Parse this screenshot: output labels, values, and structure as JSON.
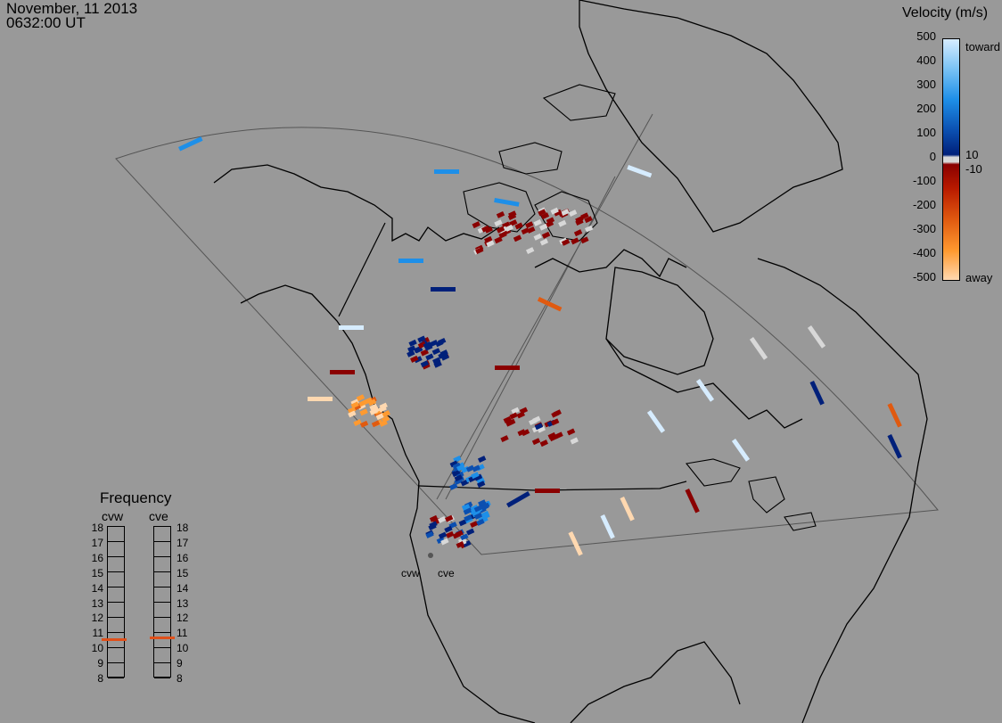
{
  "timestamp": {
    "date": "November, 11 2013",
    "time": "0632:00 UT"
  },
  "legend": {
    "title": "Velocity (m/s)",
    "ticks": [
      "500",
      "400",
      "300",
      "200",
      "100",
      "0",
      "-100",
      "-200",
      "-300",
      "-400",
      "-500"
    ],
    "inner_labels": {
      "pos": "10",
      "neg": "-10"
    },
    "toward_label": "toward",
    "away_label": "away",
    "colors": {
      "toward_max": "#d6ecff",
      "toward_mid": "#1e8fe8",
      "toward_low": "#00207a",
      "zero_band": "#d8d8d8",
      "away_low": "#8a0000",
      "away_mid": "#e05a10",
      "away_max": "#ffd8b0"
    }
  },
  "frequency_panel": {
    "title": "Frequency",
    "radars": [
      {
        "name": "cvw",
        "selected_mhz": 10.5
      },
      {
        "name": "cve",
        "selected_mhz": 10.6
      }
    ],
    "scale_labels": [
      "18",
      "17",
      "16",
      "15",
      "14",
      "13",
      "12",
      "11",
      "10",
      "9",
      "8"
    ],
    "marker_color": "#e0501a"
  },
  "radar_sites": [
    "cvw",
    "cve"
  ],
  "map": {
    "background": "#999999",
    "land_outline": "#000000",
    "fov_outline": "#555555"
  }
}
